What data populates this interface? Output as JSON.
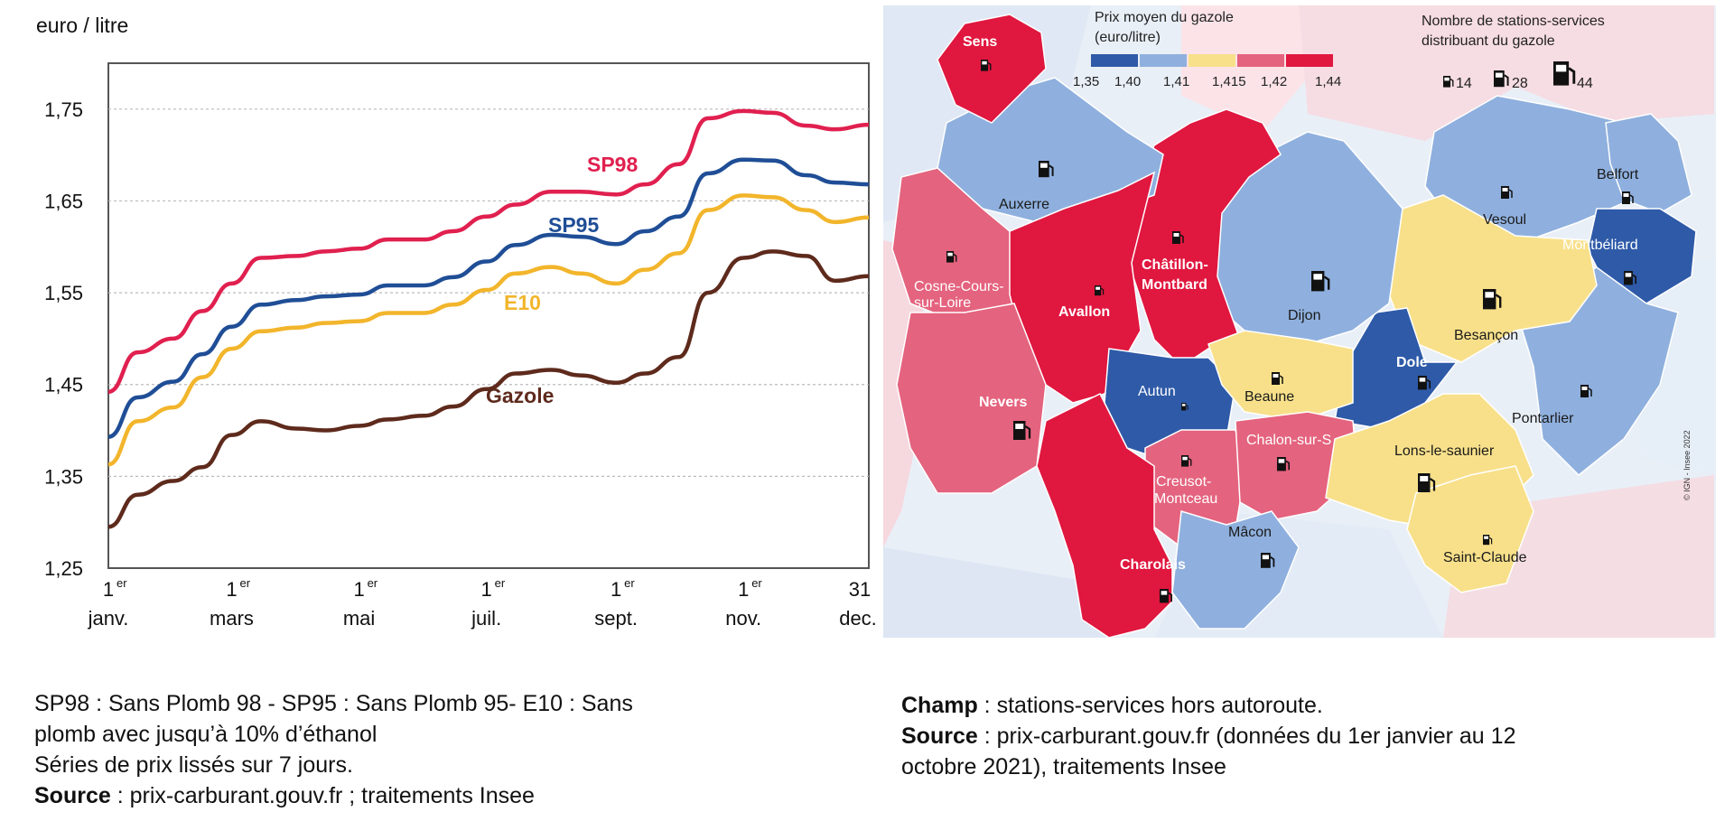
{
  "chart_data": [
    {
      "type": "line",
      "ylabel": "euro / litre",
      "ylim": [
        1.25,
        1.8
      ],
      "yticks": [
        "1,25",
        "1,35",
        "1,45",
        "1,55",
        "1,65",
        "1,75"
      ],
      "yticks_values": [
        1.25,
        1.35,
        1.45,
        1.55,
        1.65,
        1.75
      ],
      "xticks": [
        {
          "sup": "er",
          "num": "1",
          "label": "janv."
        },
        {
          "sup": "er",
          "num": "1",
          "label": "mars"
        },
        {
          "sup": "er",
          "num": "1",
          "label": "mai"
        },
        {
          "sup": "er",
          "num": "1",
          "label": "juil."
        },
        {
          "sup": "er",
          "num": "1",
          "label": "sept."
        },
        {
          "sup": "er",
          "num": "1",
          "label": "nov."
        },
        {
          "sup": "",
          "num": "31",
          "label": "dec."
        }
      ],
      "x": [
        "01-01",
        "01-15",
        "02-01",
        "02-15",
        "03-01",
        "03-15",
        "04-01",
        "04-15",
        "05-01",
        "05-15",
        "06-01",
        "06-15",
        "07-01",
        "07-15",
        "08-01",
        "08-15",
        "09-01",
        "09-15",
        "10-01",
        "10-15",
        "11-01",
        "11-15",
        "12-01",
        "12-15",
        "12-31"
      ],
      "grid": true,
      "series": [
        {
          "name": "SP98",
          "color": "#e0204f",
          "values": [
            1.442,
            1.485,
            1.5,
            1.53,
            1.56,
            1.588,
            1.59,
            1.595,
            1.598,
            1.608,
            1.608,
            1.617,
            1.633,
            1.646,
            1.66,
            1.66,
            1.657,
            1.668,
            1.69,
            1.74,
            1.748,
            1.746,
            1.732,
            1.728,
            1.733
          ]
        },
        {
          "name": "SP95",
          "color": "#1f4e96",
          "values": [
            1.393,
            1.436,
            1.453,
            1.483,
            1.513,
            1.537,
            1.542,
            1.546,
            1.548,
            1.558,
            1.558,
            1.567,
            1.584,
            1.602,
            1.613,
            1.611,
            1.603,
            1.617,
            1.633,
            1.68,
            1.695,
            1.694,
            1.678,
            1.67,
            1.668
          ]
        },
        {
          "name": "E10",
          "color": "#f2b52b",
          "values": [
            1.363,
            1.41,
            1.425,
            1.458,
            1.489,
            1.508,
            1.512,
            1.517,
            1.519,
            1.528,
            1.528,
            1.537,
            1.553,
            1.571,
            1.578,
            1.571,
            1.56,
            1.575,
            1.593,
            1.64,
            1.656,
            1.654,
            1.64,
            1.627,
            1.632
          ]
        },
        {
          "name": "Gazole",
          "color": "#5e2a1c",
          "values": [
            1.295,
            1.33,
            1.345,
            1.36,
            1.395,
            1.41,
            1.402,
            1.4,
            1.405,
            1.412,
            1.416,
            1.426,
            1.445,
            1.462,
            1.466,
            1.46,
            1.452,
            1.462,
            1.48,
            1.55,
            1.588,
            1.595,
            1.59,
            1.563,
            1.568
          ]
        }
      ]
    },
    {
      "type": "map",
      "legend": {
        "title_line1": "Prix moyen du gazole",
        "title_line2": "(euro/litre)",
        "bins": [
          {
            "color": "#2e5aa8",
            "label_left": "1,35"
          },
          {
            "color": "#8fb0de",
            "label_left": "1,40"
          },
          {
            "color": "#f8e08a",
            "label_left": "1,41"
          },
          {
            "color": "#e4637e",
            "label_left": "1,415"
          },
          {
            "color": "#e0173f",
            "label_left": "1,42"
          }
        ],
        "last_label": "1,44",
        "stations_title_line1": "Nombre de stations-services",
        "stations_title_line2": "distribuant du gazole",
        "stations_counts": [
          "14",
          "28",
          "44"
        ]
      },
      "regions": [
        {
          "name": "Sens",
          "class": "1,42–1,44"
        },
        {
          "name": "Auxerre",
          "class": "1,40–1,41"
        },
        {
          "name": "Cosne-Cours-sur-Loire",
          "class": "1,415–1,42"
        },
        {
          "name": "Avallon",
          "class": "1,42–1,44"
        },
        {
          "name": "Châtillon-Montbard",
          "class": "1,42–1,44"
        },
        {
          "name": "Dijon",
          "class": "1,40–1,41"
        },
        {
          "name": "Vesoul",
          "class": "1,40–1,41"
        },
        {
          "name": "Belfort",
          "class": "1,40–1,41"
        },
        {
          "name": "Montbéliard",
          "class": "1,35–1,40"
        },
        {
          "name": "Besançon",
          "class": "1,41–1,415"
        },
        {
          "name": "Nevers",
          "class": "1,415–1,42"
        },
        {
          "name": "Autun",
          "class": "1,35–1,40"
        },
        {
          "name": "Beaune",
          "class": "1,41–1,415"
        },
        {
          "name": "Dole",
          "class": "1,35–1,40"
        },
        {
          "name": "Pontarlier",
          "class": "1,40–1,41"
        },
        {
          "name": "Chalon-sur-S",
          "class": "1,415–1,42"
        },
        {
          "name": "Creusot-Montceau",
          "class": "1,415–1,42"
        },
        {
          "name": "Lons-le-saunier",
          "class": "1,41–1,415"
        },
        {
          "name": "Mâcon",
          "class": "1,40–1,41"
        },
        {
          "name": "Charolais",
          "class": "1,42–1,44"
        },
        {
          "name": "Saint-Claude",
          "class": "1,41–1,415"
        }
      ],
      "copyright": "© IGN - Insee 2022"
    }
  ],
  "map_labels": {
    "sens": "Sens",
    "auxerre": "Auxerre",
    "cosne1": "Cosne-Cours-",
    "cosne2": "sur-Loire",
    "avallon": "Avallon",
    "chat1": "Châtillon-",
    "chat2": "Montbard",
    "dijon": "Dijon",
    "vesoul": "Vesoul",
    "belfort": "Belfort",
    "montbeliard": "Montbéliard",
    "besancon": "Besançon",
    "nevers": "Nevers",
    "autun": "Autun",
    "beaune": "Beaune",
    "dole": "Dole",
    "pontarlier": "Pontarlier",
    "chalon": "Chalon-sur-S",
    "creusot1": "Creusot-",
    "creusot2": "Montceau",
    "lons": "Lons-le-saunier",
    "macon": "Mâcon",
    "charolais": "Charolais",
    "saintclaude": "Saint-Claude"
  },
  "notes": {
    "left_line1": "SP98 : Sans Plomb 98 - SP95 : Sans Plomb 95- E10 : Sans",
    "left_line2": "plomb avec jusqu’à 10% d’éthanol",
    "left_line3": "Séries de prix lissés sur 7 jours.",
    "left_source_label": "Source",
    "left_source_text": " : prix-carburant.gouv.fr ; traitements Insee",
    "right_champ_label": "Champ",
    "right_champ_text": " : stations-services hors autoroute.",
    "right_source_label": "Source",
    "right_source_text": " : prix-carburant.gouv.fr (données du 1er janvier au 12",
    "right_source_text2": "octobre 2021), traitements Insee"
  }
}
